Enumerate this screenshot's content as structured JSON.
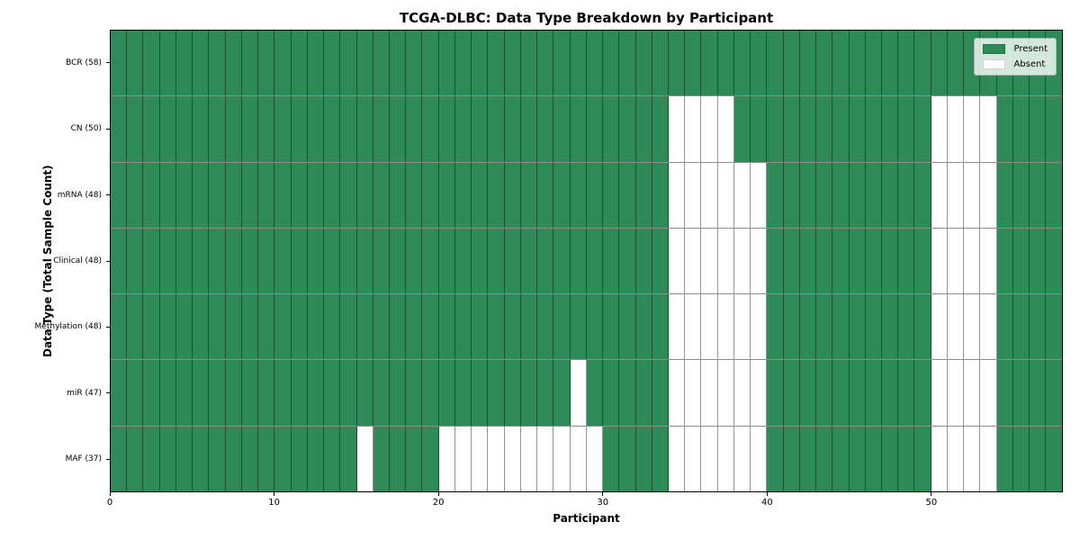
{
  "colors": {
    "present": "#2e8b57",
    "absent": "#ffffff",
    "grid_line": "rgba(0,0,0,0.42)",
    "spine": "#000000",
    "legend_bg": "rgba(255,255,255,0.8)",
    "legend_border": "#b0b0b0"
  },
  "legend": {
    "items": [
      {
        "label": "Present",
        "color": "#2e8b57"
      },
      {
        "label": "Absent",
        "color": "#ffffff"
      }
    ]
  },
  "chart_data": {
    "type": "heatmap",
    "title": "TCGA-DLBC: Data Type Breakdown by Participant",
    "xlabel": "Participant",
    "ylabel": "Data Type (Total Sample Count)",
    "n_participants": 58,
    "x_range": [
      0,
      58
    ],
    "x_ticks": [
      0,
      10,
      20,
      30,
      40,
      50
    ],
    "cell_values": {
      "present": 1,
      "absent": 0
    },
    "rows": [
      {
        "label": "BCR (58)",
        "total_samples": 58,
        "absent_participants": []
      },
      {
        "label": "CN (50)",
        "total_samples": 50,
        "absent_participants": [
          34,
          35,
          36,
          37,
          50,
          51,
          52,
          53
        ]
      },
      {
        "label": "mRNA (48)",
        "total_samples": 48,
        "absent_participants": [
          34,
          35,
          36,
          37,
          38,
          39,
          50,
          51,
          52,
          53
        ]
      },
      {
        "label": "Clinical (48)",
        "total_samples": 48,
        "absent_participants": [
          34,
          35,
          36,
          37,
          38,
          39,
          50,
          51,
          52,
          53
        ]
      },
      {
        "label": "Methylation (48)",
        "total_samples": 48,
        "absent_participants": [
          34,
          35,
          36,
          37,
          38,
          39,
          50,
          51,
          52,
          53
        ]
      },
      {
        "label": "miR (47)",
        "total_samples": 47,
        "absent_participants": [
          28,
          34,
          35,
          36,
          37,
          38,
          39,
          50,
          51,
          52,
          53
        ]
      },
      {
        "label": "MAF (37)",
        "total_samples": 37,
        "absent_participants": [
          15,
          20,
          21,
          22,
          23,
          24,
          25,
          26,
          27,
          28,
          29,
          34,
          35,
          36,
          37,
          38,
          39,
          50,
          51,
          52,
          53
        ]
      }
    ],
    "legend_position": "upper right",
    "grid": "cell-borders"
  }
}
